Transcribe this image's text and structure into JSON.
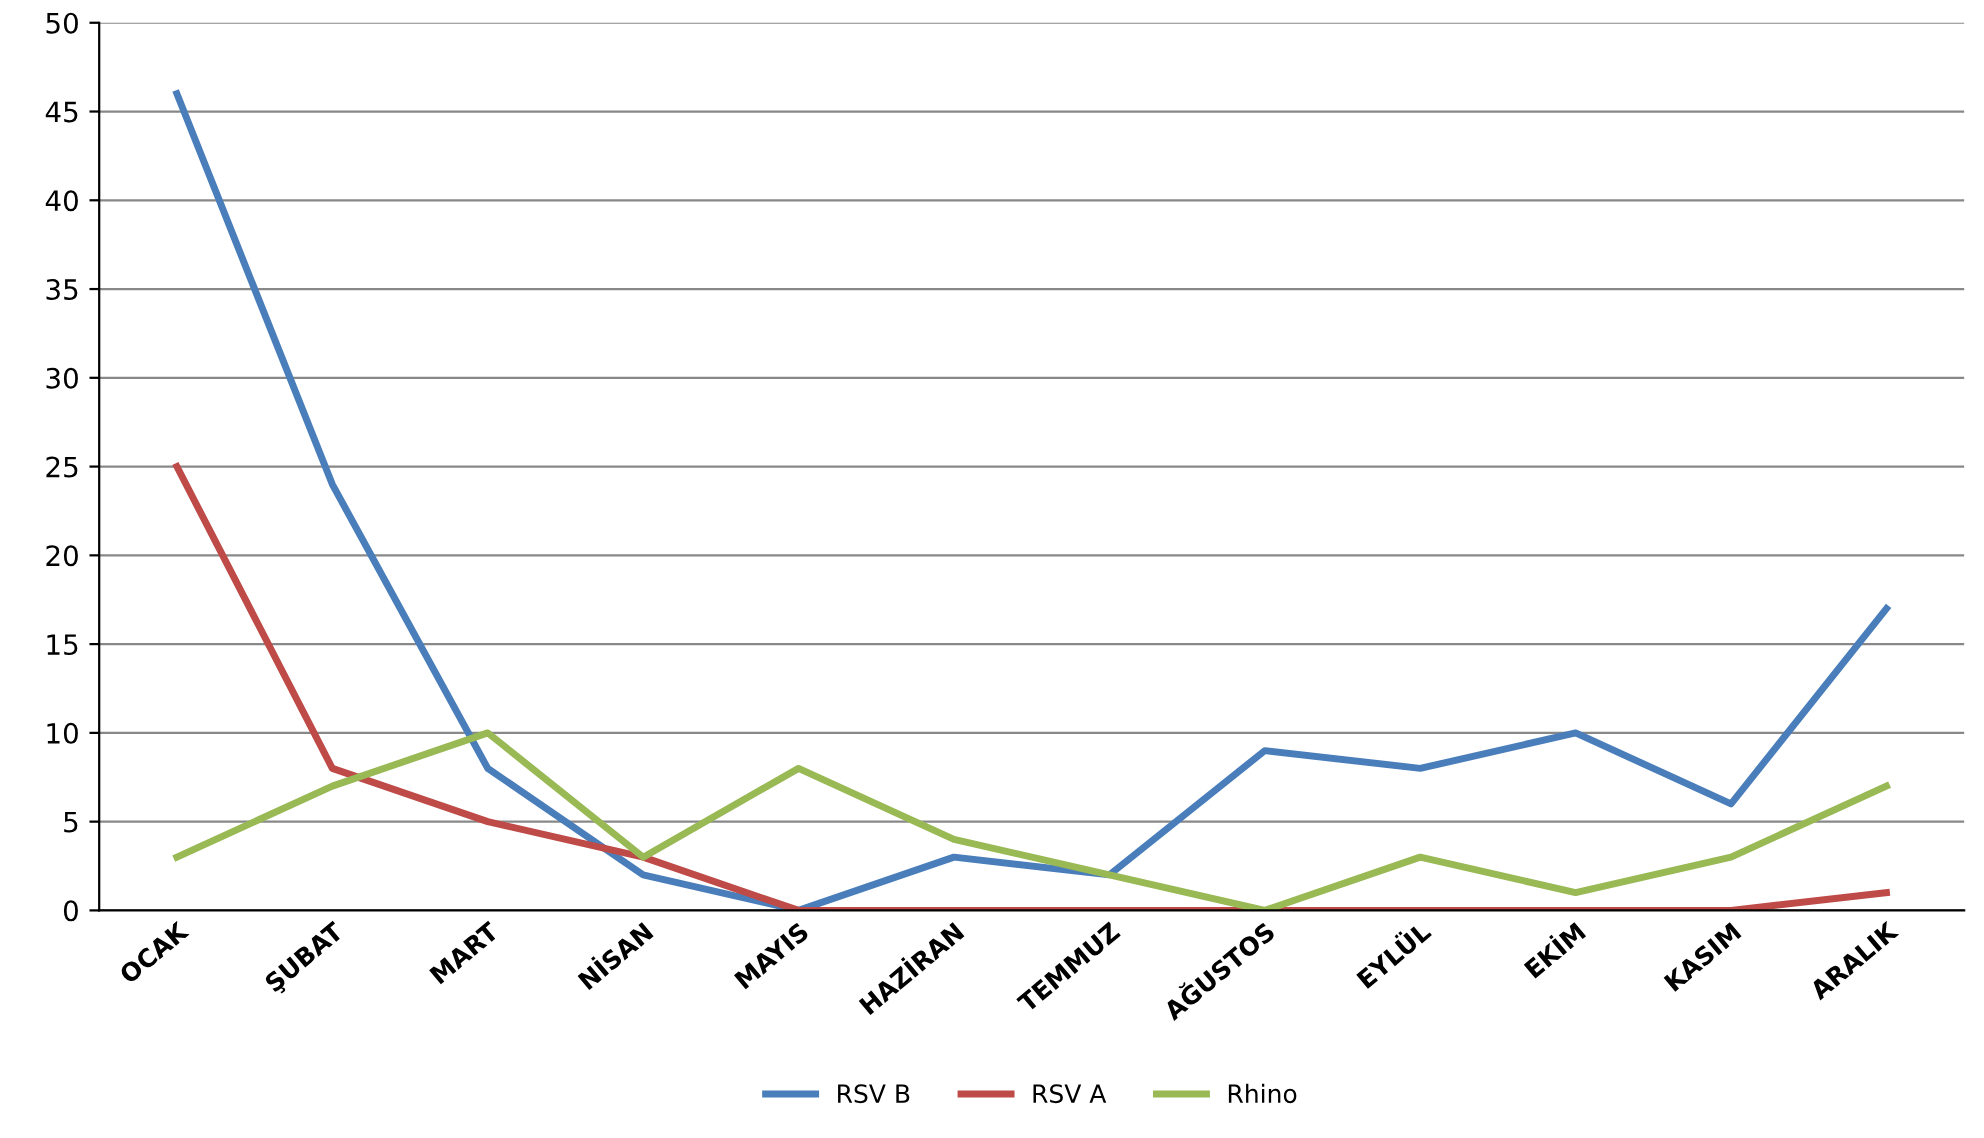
{
  "chart_data": {
    "type": "line",
    "categories": [
      "OCAK",
      "ŞUBAT",
      "MART",
      "NİSAN",
      "MAYIS",
      "HAZİRAN",
      "TEMMUZ",
      "AĞUSTOS",
      "EYLÜL",
      "EKİM",
      "KASIM",
      "ARALIK"
    ],
    "series": [
      {
        "name": "RSV B",
        "color": "#4a7ebb",
        "values": [
          46,
          24,
          8,
          2,
          0,
          3,
          2,
          9,
          8,
          10,
          6,
          17
        ]
      },
      {
        "name": "RSV A",
        "color": "#be4b48",
        "values": [
          25,
          8,
          5,
          3,
          0,
          0,
          0,
          0,
          0,
          0,
          0,
          1
        ]
      },
      {
        "name": "Rhino",
        "color": "#98b954",
        "values": [
          3,
          7,
          10,
          3,
          8,
          4,
          2,
          0,
          3,
          1,
          3,
          7
        ]
      }
    ],
    "ylim": [
      0,
      50
    ],
    "yticks": [
      0,
      5,
      10,
      15,
      20,
      25,
      30,
      35,
      40,
      45,
      50
    ],
    "grid": "y",
    "legend": "bottom",
    "marker": "none",
    "line_style": "solid"
  }
}
